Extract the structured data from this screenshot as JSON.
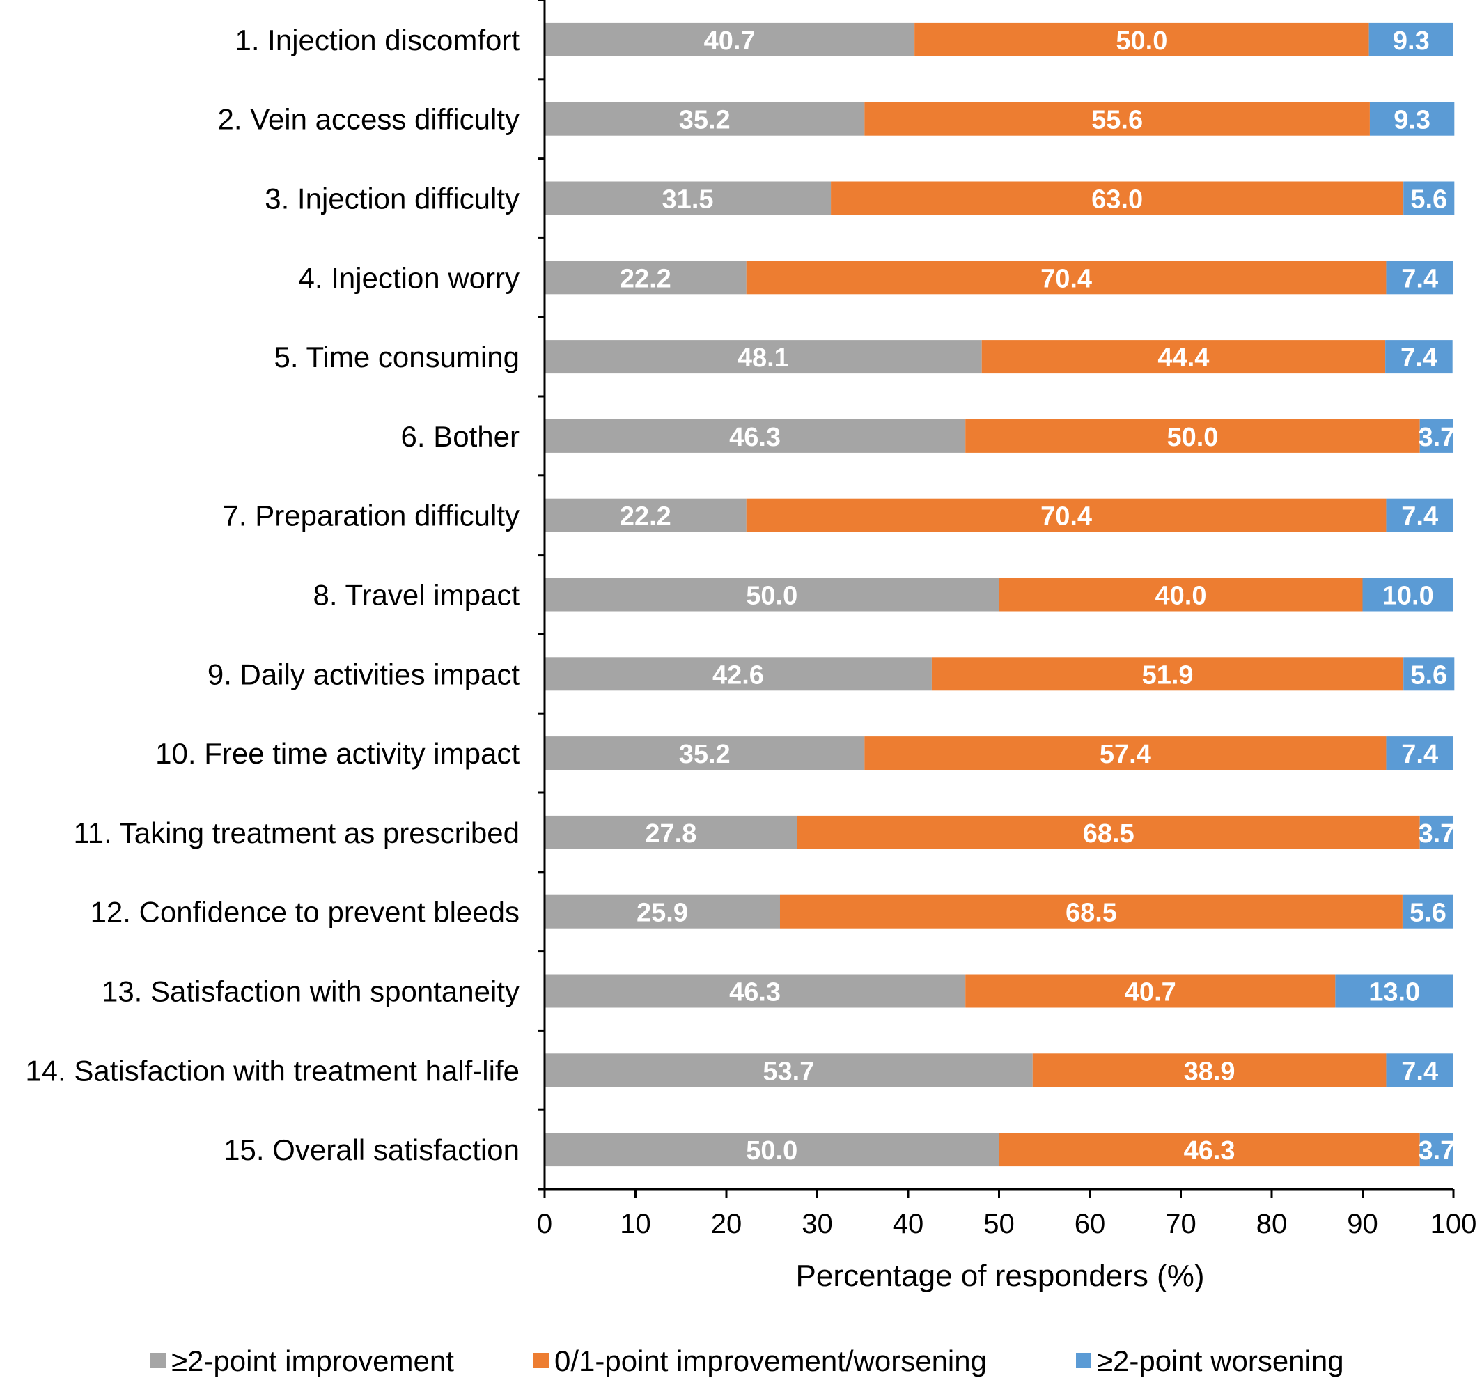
{
  "chart_data": {
    "type": "bar",
    "orientation": "horizontal",
    "stacked": true,
    "categories": [
      "1. Injection discomfort",
      "2. Vein access difficulty",
      "3. Injection difficulty",
      "4. Injection worry",
      "5. Time consuming",
      "6. Bother",
      "7. Preparation difficulty",
      "8. Travel impact",
      "9. Daily activities impact",
      "10. Free time activity impact",
      "11. Taking treatment as prescribed",
      "12. Confidence to prevent bleeds",
      "13. Satisfaction with spontaneity",
      "14. Satisfaction with treatment half-life",
      "15. Overall satisfaction"
    ],
    "series": [
      {
        "name": "≥2-point improvement",
        "color": "#A5A5A5",
        "values": [
          40.7,
          35.2,
          31.5,
          22.2,
          48.1,
          46.3,
          22.2,
          50.0,
          42.6,
          35.2,
          27.8,
          25.9,
          46.3,
          53.7,
          50.0
        ]
      },
      {
        "name": "0/1-point improvement/worsening",
        "color": "#ED7D31",
        "values": [
          50.0,
          55.6,
          63.0,
          70.4,
          44.4,
          50.0,
          70.4,
          40.0,
          51.9,
          57.4,
          68.5,
          68.5,
          40.7,
          38.9,
          46.3
        ]
      },
      {
        "name": "≥2-point worsening",
        "color": "#5B9BD5",
        "values": [
          9.3,
          9.3,
          5.6,
          7.4,
          7.4,
          3.7,
          7.4,
          10.0,
          5.6,
          7.4,
          3.7,
          5.6,
          13.0,
          7.4,
          3.7
        ]
      }
    ],
    "xlabel": "Percentage of responders (%)",
    "ylabel": "",
    "title": "",
    "xlim": [
      0,
      100
    ],
    "xticks": [
      0,
      10,
      20,
      30,
      40,
      50,
      60,
      70,
      80,
      90,
      100
    ],
    "grid": false,
    "legend_position": "bottom"
  }
}
